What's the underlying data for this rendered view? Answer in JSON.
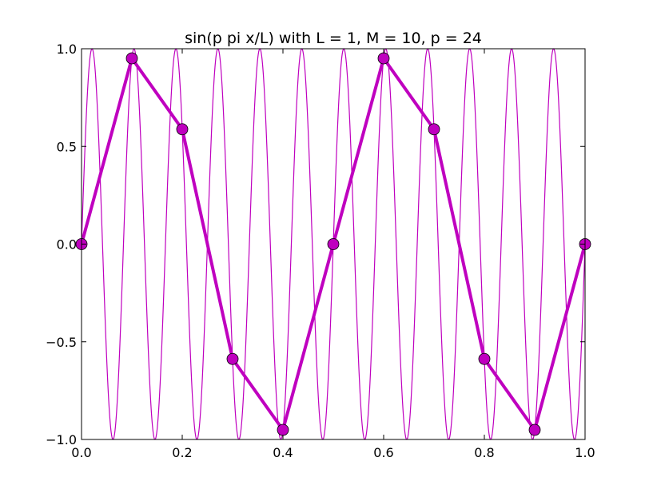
{
  "chart_data": {
    "type": "line",
    "title": "sin(p pi x/L) with L = 1, M = 10, p = 24",
    "xlabel": "",
    "ylabel": "",
    "xlim": [
      0.0,
      1.0
    ],
    "ylim": [
      -1.0,
      1.0
    ],
    "x_ticks": [
      "0.0",
      "0.2",
      "0.4",
      "0.6",
      "0.8",
      "1.0"
    ],
    "y_ticks": [
      "1.0",
      "0.5",
      "0.0",
      "−0.5",
      "−1.0"
    ],
    "grid": false,
    "legend": "none",
    "series": [
      {
        "kind": "continuous",
        "function": "sin(24*pi*x)",
        "color": "#bf00bf",
        "style": "thin line"
      },
      {
        "kind": "sampled",
        "color": "#bf00bf",
        "style": "thick line with circle markers",
        "x": [
          0.0,
          0.1,
          0.2,
          0.3,
          0.4,
          0.5,
          0.6,
          0.7,
          0.8,
          0.9,
          1.0
        ],
        "y": [
          0.0,
          0.951,
          0.588,
          -0.588,
          -0.951,
          0.0,
          0.951,
          0.588,
          -0.588,
          -0.951,
          0.0
        ]
      }
    ]
  }
}
